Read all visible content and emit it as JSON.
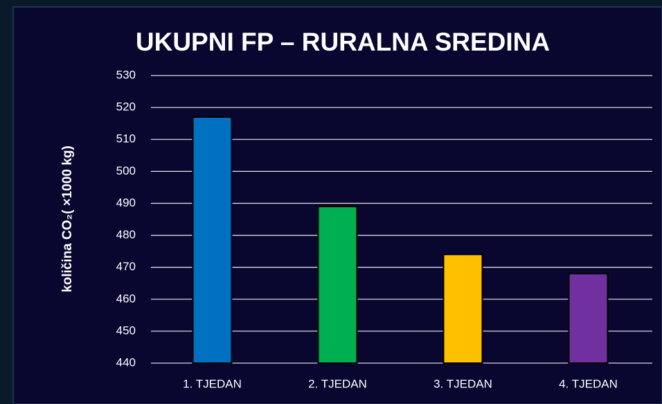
{
  "chart_data": {
    "type": "bar",
    "title": "UKUPNI FP – RURALNA SREDINA",
    "y_label": "količina CO₂( ×1000 kg)",
    "categories": [
      "1. TJEDAN",
      "2. TJEDAN",
      "3. TJEDAN",
      "4. TJEDAN"
    ],
    "values": [
      517,
      489,
      474,
      468
    ],
    "colors": [
      "#0070c0",
      "#00b050",
      "#ffc000",
      "#7030a0"
    ],
    "ylim": [
      440,
      530
    ],
    "yticks": [
      440,
      450,
      460,
      470,
      480,
      490,
      500,
      510,
      520,
      530
    ],
    "grid": true
  }
}
